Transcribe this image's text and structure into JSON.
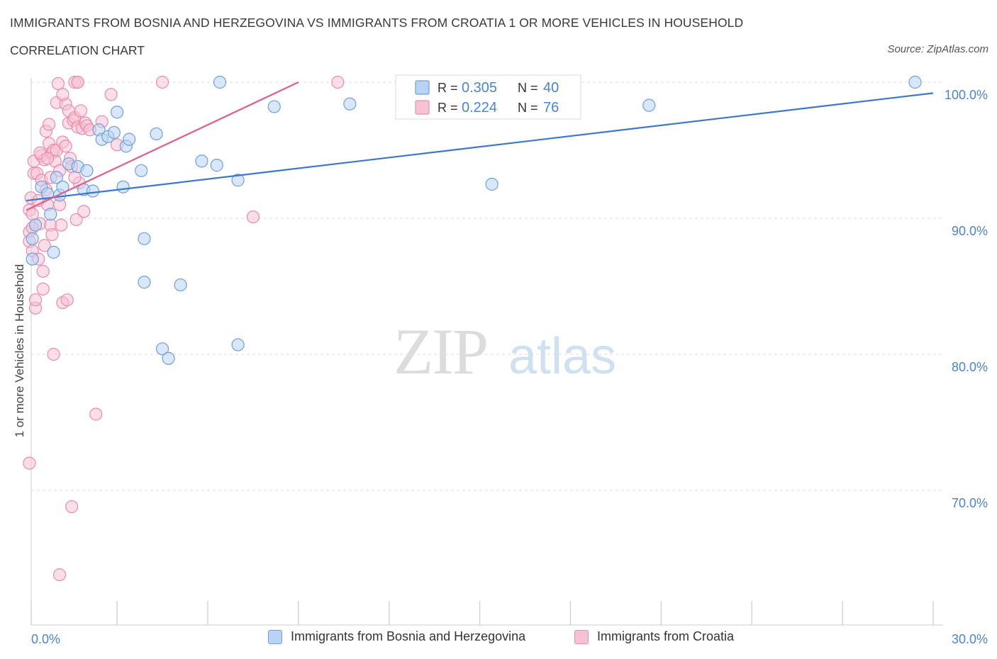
{
  "header": {
    "title": "IMMIGRANTS FROM BOSNIA AND HERZEGOVINA VS IMMIGRANTS FROM CROATIA 1 OR MORE VEHICLES IN HOUSEHOLD",
    "subtitle": "CORRELATION CHART",
    "source": "Source: ZipAtlas.com"
  },
  "watermark": {
    "zip": "ZIP",
    "atlas": "atlas"
  },
  "colors": {
    "blue_fill": "#b9d3f5",
    "blue_stroke": "#6f9fdc",
    "blue_line": "#3b78cc",
    "pink_fill": "#f7c3d4",
    "pink_stroke": "#e98cab",
    "pink_line": "#e0608b",
    "tick_label": "#4a86d0",
    "grid": "#dcdcdc"
  },
  "stats_legend": [
    {
      "r_label": "R = ",
      "r_value": "0.305",
      "n_label": "N = ",
      "n_value": "40",
      "series": "blue"
    },
    {
      "r_label": "R = ",
      "r_value": "0.224",
      "n_label": "N = ",
      "n_value": "76",
      "series": "pink"
    }
  ],
  "chart_data": {
    "type": "scatter",
    "title": "IMMIGRANTS FROM BOSNIA AND HERZEGOVINA VS IMMIGRANTS FROM CROATIA 1 OR MORE VEHICLES IN HOUSEHOLD",
    "subtitle": "CORRELATION CHART",
    "xlabel": "",
    "ylabel": "1 or more Vehicles in Household",
    "xlim": [
      0,
      30
    ],
    "ylim": [
      60,
      100
    ],
    "x_tick_labels": [
      {
        "value": 0,
        "label": "0.0%"
      },
      {
        "value": 30,
        "label": "30.0%"
      }
    ],
    "x_minor_ticks": [
      3,
      6,
      9,
      12,
      15,
      18,
      21,
      24,
      27
    ],
    "y_ticks": [
      {
        "value": 100,
        "label": "100.0%"
      },
      {
        "value": 90,
        "label": "90.0%"
      },
      {
        "value": 80,
        "label": "80.0%"
      },
      {
        "value": 70,
        "label": "70.0%"
      }
    ],
    "grid": true,
    "legend_position": "top-center",
    "series": [
      {
        "name": "Immigrants from Bosnia and Herzegovina",
        "color": "blue",
        "R": 0.305,
        "N": 40,
        "trend": {
          "x0": 0,
          "y0": 91.3,
          "x1": 30,
          "y1": 99.2
        },
        "points": [
          [
            0.2,
            88.5
          ],
          [
            0.2,
            87.0
          ],
          [
            0.3,
            89.5
          ],
          [
            0.5,
            92.3
          ],
          [
            0.7,
            91.8
          ],
          [
            0.8,
            90.3
          ],
          [
            1.0,
            93.0
          ],
          [
            1.1,
            91.7
          ],
          [
            1.2,
            92.3
          ],
          [
            1.4,
            94.0
          ],
          [
            1.7,
            93.8
          ],
          [
            1.9,
            92.1
          ],
          [
            2.0,
            93.5
          ],
          [
            2.2,
            92.0
          ],
          [
            2.4,
            96.5
          ],
          [
            2.5,
            95.8
          ],
          [
            2.7,
            96.0
          ],
          [
            2.9,
            96.3
          ],
          [
            3.0,
            97.8
          ],
          [
            3.2,
            92.3
          ],
          [
            3.3,
            95.3
          ],
          [
            3.4,
            95.8
          ],
          [
            3.8,
            93.5
          ],
          [
            3.9,
            85.3
          ],
          [
            3.9,
            88.5
          ],
          [
            4.3,
            96.2
          ],
          [
            4.5,
            80.4
          ],
          [
            4.7,
            79.7
          ],
          [
            5.1,
            85.1
          ],
          [
            5.8,
            94.2
          ],
          [
            6.3,
            93.9
          ],
          [
            6.4,
            100.0
          ],
          [
            7.0,
            80.7
          ],
          [
            7.0,
            92.8
          ],
          [
            8.2,
            98.2
          ],
          [
            10.7,
            98.4
          ],
          [
            15.4,
            92.5
          ],
          [
            20.6,
            98.3
          ],
          [
            29.4,
            100.0
          ],
          [
            0.9,
            87.5
          ]
        ]
      },
      {
        "name": "Immigrants from Croatia",
        "color": "pink",
        "R": 0.224,
        "N": 76,
        "trend": {
          "x0": 0,
          "y0": 90.6,
          "x1": 9.0,
          "y1": 100.0
        },
        "points": [
          [
            0.1,
            90.6
          ],
          [
            0.1,
            89.0
          ],
          [
            0.1,
            88.3
          ],
          [
            0.15,
            91.5
          ],
          [
            0.2,
            90.3
          ],
          [
            0.2,
            87.6
          ],
          [
            0.25,
            93.3
          ],
          [
            0.25,
            94.2
          ],
          [
            0.3,
            83.4
          ],
          [
            0.3,
            84.0
          ],
          [
            0.35,
            93.3
          ],
          [
            0.4,
            87.0
          ],
          [
            0.4,
            91.3
          ],
          [
            0.45,
            89.6
          ],
          [
            0.5,
            92.8
          ],
          [
            0.5,
            94.6
          ],
          [
            0.55,
            86.1
          ],
          [
            0.55,
            84.8
          ],
          [
            0.6,
            88.0
          ],
          [
            0.6,
            94.3
          ],
          [
            0.65,
            96.4
          ],
          [
            0.65,
            92.1
          ],
          [
            0.7,
            91.0
          ],
          [
            0.75,
            96.9
          ],
          [
            0.75,
            95.5
          ],
          [
            0.8,
            89.5
          ],
          [
            0.8,
            93.0
          ],
          [
            0.85,
            94.8
          ],
          [
            0.85,
            88.8
          ],
          [
            0.9,
            80.0
          ],
          [
            0.9,
            95.0
          ],
          [
            0.95,
            94.2
          ],
          [
            1.0,
            95.0
          ],
          [
            1.0,
            98.5
          ],
          [
            1.05,
            99.9
          ],
          [
            1.1,
            93.5
          ],
          [
            1.1,
            91.0
          ],
          [
            1.15,
            89.5
          ],
          [
            1.2,
            95.6
          ],
          [
            1.2,
            83.8
          ],
          [
            1.3,
            98.4
          ],
          [
            1.3,
            95.3
          ],
          [
            1.35,
            84.0
          ],
          [
            1.4,
            97.9
          ],
          [
            1.4,
            97.0
          ],
          [
            1.45,
            94.4
          ],
          [
            1.5,
            93.8
          ],
          [
            1.5,
            68.8
          ],
          [
            1.55,
            97.2
          ],
          [
            1.6,
            100.0
          ],
          [
            1.6,
            97.4
          ],
          [
            1.65,
            89.9
          ],
          [
            1.7,
            96.7
          ],
          [
            1.7,
            100.0
          ],
          [
            1.75,
            92.6
          ],
          [
            1.8,
            97.9
          ],
          [
            1.85,
            96.6
          ],
          [
            1.9,
            90.5
          ],
          [
            1.95,
            97.0
          ],
          [
            2.0,
            96.8
          ],
          [
            2.1,
            96.5
          ],
          [
            2.3,
            75.6
          ],
          [
            2.5,
            97.1
          ],
          [
            2.8,
            99.1
          ],
          [
            3.0,
            95.4
          ],
          [
            4.5,
            100.0
          ],
          [
            7.5,
            90.1
          ],
          [
            10.3,
            100.0
          ],
          [
            0.1,
            72.0
          ],
          [
            1.1,
            63.8
          ],
          [
            1.2,
            99.1
          ],
          [
            1.7,
            100.0
          ],
          [
            0.45,
            94.8
          ],
          [
            0.7,
            94.4
          ],
          [
            0.2,
            89.3
          ],
          [
            1.6,
            93.0
          ]
        ]
      }
    ]
  },
  "bottom_legend": [
    {
      "label": "Immigrants from Bosnia and Herzegovina",
      "series": "blue"
    },
    {
      "label": "Immigrants from Croatia",
      "series": "pink"
    }
  ]
}
